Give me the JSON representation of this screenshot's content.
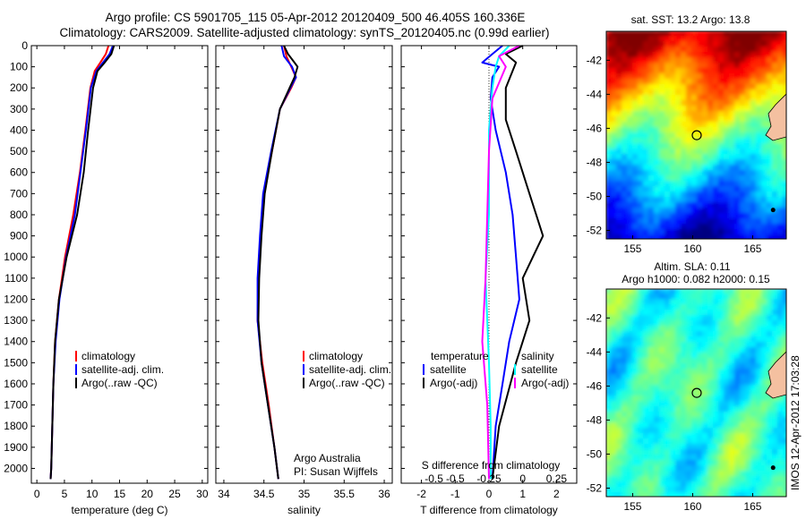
{
  "title_line1": "Argo profile: CS 5901705_115 05-Apr-2012 20120409_500 46.405S 160.336E",
  "title_line2": "Climatology: CARS2009. Satellite-adjusted climatology: synTS_20120405.nc (0.99d earlier)",
  "watermark": "IMOS 12-Apr-2012 17:03:28",
  "colors": {
    "climatology": "#ff0000",
    "satellite": "#0000ff",
    "argo": "#000000",
    "salinity_sat": "#00ffff",
    "salinity_argo": "#ff00ff"
  },
  "chart_data": [
    {
      "type": "line",
      "xlabel": "temperature (deg C)",
      "ylabel": "",
      "xlim": [
        -1,
        31
      ],
      "ylim": [
        2070,
        0
      ],
      "xticks": [
        0,
        5,
        10,
        15,
        20,
        25,
        30
      ],
      "yticks": [
        0,
        100,
        200,
        300,
        400,
        500,
        600,
        700,
        800,
        900,
        1000,
        1100,
        1200,
        1300,
        1400,
        1500,
        1600,
        1700,
        1800,
        1900,
        2000
      ],
      "legend": [
        "climatology",
        "satellite-adj. clim.",
        "Argo(..raw -QC)"
      ],
      "series": [
        {
          "name": "climatology",
          "color": "#ff0000",
          "points": [
            [
              13.0,
              0
            ],
            [
              12.5,
              40
            ],
            [
              11.5,
              80
            ],
            [
              10.5,
              120
            ],
            [
              9.7,
              200
            ],
            [
              8.8,
              400
            ],
            [
              7.8,
              600
            ],
            [
              6.6,
              800
            ],
            [
              5.1,
              1000
            ],
            [
              4.0,
              1200
            ],
            [
              3.3,
              1400
            ],
            [
              3.0,
              1600
            ],
            [
              2.8,
              1800
            ],
            [
              2.6,
              2000
            ],
            [
              2.5,
              2050
            ]
          ]
        },
        {
          "name": "satellite-adj. clim.",
          "color": "#0000ff",
          "points": [
            [
              13.8,
              0
            ],
            [
              13.2,
              40
            ],
            [
              12.0,
              80
            ],
            [
              10.8,
              120
            ],
            [
              9.8,
              200
            ],
            [
              8.9,
              400
            ],
            [
              7.9,
              600
            ],
            [
              6.9,
              800
            ],
            [
              5.3,
              1000
            ],
            [
              4.1,
              1200
            ],
            [
              3.4,
              1400
            ],
            [
              3.0,
              1600
            ],
            [
              2.8,
              1800
            ],
            [
              2.6,
              2000
            ],
            [
              2.5,
              2050
            ]
          ]
        },
        {
          "name": "Argo(..raw -QC)",
          "color": "#000000",
          "points": [
            [
              14.0,
              0
            ],
            [
              13.5,
              40
            ],
            [
              12.3,
              80
            ],
            [
              11.0,
              120
            ],
            [
              10.2,
              200
            ],
            [
              9.3,
              400
            ],
            [
              8.5,
              600
            ],
            [
              7.3,
              800
            ],
            [
              5.4,
              1000
            ],
            [
              4.0,
              1200
            ],
            [
              3.3,
              1400
            ],
            [
              3.0,
              1600
            ],
            [
              2.8,
              1800
            ],
            [
              2.6,
              2000
            ],
            [
              2.5,
              2050
            ]
          ]
        }
      ]
    },
    {
      "type": "line",
      "xlabel": "salinity",
      "ylabel": "",
      "xlim": [
        33.9,
        36.1
      ],
      "ylim": [
        2070,
        0
      ],
      "xticks": [
        34,
        34.5,
        35,
        35.5,
        36
      ],
      "yticks": [
        0,
        100,
        200,
        300,
        400,
        500,
        600,
        700,
        800,
        900,
        1000,
        1100,
        1200,
        1300,
        1400,
        1500,
        1600,
        1700,
        1800,
        1900,
        2000
      ],
      "legend": [
        "climatology",
        "satellite-adj. clim.",
        "Argo(..raw -QC)"
      ],
      "annotation": [
        "Argo Australia",
        "PI: Susan Wijffels"
      ],
      "series": [
        {
          "name": "climatology",
          "color": "#ff0000",
          "points": [
            [
              34.75,
              0
            ],
            [
              34.78,
              50
            ],
            [
              34.84,
              100
            ],
            [
              34.9,
              150
            ],
            [
              34.84,
              200
            ],
            [
              34.7,
              300
            ],
            [
              34.6,
              500
            ],
            [
              34.5,
              700
            ],
            [
              34.46,
              900
            ],
            [
              34.43,
              1100
            ],
            [
              34.42,
              1300
            ],
            [
              34.48,
              1500
            ],
            [
              34.56,
              1700
            ],
            [
              34.63,
              1900
            ],
            [
              34.68,
              2050
            ]
          ]
        },
        {
          "name": "satellite-adj. clim.",
          "color": "#0000ff",
          "points": [
            [
              34.72,
              0
            ],
            [
              34.75,
              50
            ],
            [
              34.85,
              100
            ],
            [
              34.9,
              150
            ],
            [
              34.83,
              200
            ],
            [
              34.7,
              300
            ],
            [
              34.59,
              500
            ],
            [
              34.49,
              700
            ],
            [
              34.45,
              900
            ],
            [
              34.42,
              1100
            ],
            [
              34.42,
              1300
            ],
            [
              34.47,
              1500
            ],
            [
              34.55,
              1700
            ],
            [
              34.63,
              1900
            ],
            [
              34.68,
              2050
            ]
          ]
        },
        {
          "name": "Argo(..raw -QC)",
          "color": "#000000",
          "points": [
            [
              34.75,
              0
            ],
            [
              34.8,
              40
            ],
            [
              34.88,
              80
            ],
            [
              34.92,
              100
            ],
            [
              34.88,
              150
            ],
            [
              34.82,
              200
            ],
            [
              34.7,
              300
            ],
            [
              34.6,
              500
            ],
            [
              34.51,
              700
            ],
            [
              34.47,
              900
            ],
            [
              34.44,
              1100
            ],
            [
              34.43,
              1300
            ],
            [
              34.47,
              1500
            ],
            [
              34.55,
              1700
            ],
            [
              34.63,
              1900
            ],
            [
              34.68,
              2050
            ]
          ]
        }
      ]
    },
    {
      "type": "line",
      "xlabel": "T difference from climatology",
      "top_label": "S difference from climatology",
      "xlim": [
        -2.6,
        2.6
      ],
      "ylim": [
        2070,
        0
      ],
      "xticks": [
        -2,
        -1,
        0,
        1,
        2
      ],
      "xtick_labels_top": [
        "-0.5",
        "-0.25",
        "0",
        "0.25",
        "0.5"
      ],
      "yticks": [
        0,
        100,
        200,
        300,
        400,
        500,
        600,
        700,
        800,
        900,
        1000,
        1100,
        1200,
        1300,
        1400,
        1500,
        1600,
        1700,
        1800,
        1900,
        2000
      ],
      "legend_left_title": "temperature",
      "legend_left": [
        "satellite",
        "Argo(-adj)"
      ],
      "legend_right_title": "salinity",
      "legend_right": [
        "satellite",
        "Argo(-adj)"
      ],
      "series": [
        {
          "name": "satellite",
          "color": "#0000ff",
          "points": [
            [
              0.4,
              0
            ],
            [
              0.1,
              40
            ],
            [
              -0.2,
              80
            ],
            [
              0.3,
              100
            ],
            [
              0.1,
              150
            ],
            [
              0.05,
              250
            ],
            [
              0.2,
              400
            ],
            [
              0.5,
              600
            ],
            [
              0.7,
              800
            ],
            [
              0.8,
              1000
            ],
            [
              0.9,
              1200
            ],
            [
              0.6,
              1400
            ],
            [
              0.4,
              1600
            ],
            [
              0.2,
              1800
            ],
            [
              0.1,
              2050
            ]
          ]
        },
        {
          "name": "Argo(-adj)",
          "color": "#000000",
          "points": [
            [
              1.0,
              0
            ],
            [
              0.5,
              40
            ],
            [
              0.8,
              80
            ],
            [
              0.7,
              120
            ],
            [
              0.5,
              200
            ],
            [
              0.5,
              350
            ],
            [
              0.8,
              500
            ],
            [
              1.2,
              700
            ],
            [
              1.6,
              900
            ],
            [
              1.3,
              1000
            ],
            [
              1.0,
              1100
            ],
            [
              1.2,
              1300
            ],
            [
              0.8,
              1500
            ],
            [
              0.3,
              1800
            ],
            [
              0.1,
              2050
            ]
          ]
        },
        {
          "name": "satellite",
          "color": "#00ffff",
          "points": [
            [
              0.6,
              0
            ],
            [
              0.3,
              50
            ],
            [
              0.2,
              100
            ],
            [
              0.1,
              200
            ],
            [
              0.0,
              400
            ],
            [
              0.0,
              800
            ],
            [
              -0.1,
              1100
            ],
            [
              0.0,
              1500
            ],
            [
              0.05,
              1800
            ],
            [
              0.05,
              2050
            ]
          ]
        },
        {
          "name": "Argo(-adj)",
          "color": "#ff00ff",
          "points": [
            [
              0.9,
              0
            ],
            [
              0.3,
              50
            ],
            [
              0.5,
              100
            ],
            [
              0.1,
              250
            ],
            [
              0.0,
              500
            ],
            [
              -0.05,
              800
            ],
            [
              -0.1,
              1100
            ],
            [
              -0.2,
              1400
            ],
            [
              -0.05,
              1700
            ],
            [
              0.0,
              2050
            ]
          ]
        }
      ]
    }
  ],
  "maps": [
    {
      "title_lines": [
        "sat. SST: 13.2 Argo: 13.8"
      ],
      "xticks": [
        155,
        160,
        165
      ],
      "yticks": [
        -42,
        -44,
        -46,
        -48,
        -50,
        -52
      ],
      "xlim": [
        152.8,
        167.8
      ],
      "ylim": [
        -52.5,
        -40.3
      ],
      "argo_position": [
        160.336,
        -46.405
      ],
      "colormap": "jet",
      "shown": "SST field, warm (red) north, cold (blue) south"
    },
    {
      "title_lines": [
        "Altim. SLA: 0.11",
        "Argo h1000: 0.082 h2000: 0.15"
      ],
      "xticks": [
        155,
        160,
        165
      ],
      "yticks": [
        -42,
        -44,
        -46,
        -48,
        -50,
        -52
      ],
      "xlim": [
        152.8,
        167.8
      ],
      "ylim": [
        -52.5,
        -40.3
      ],
      "argo_position": [
        160.336,
        -46.405
      ],
      "colormap": "jet",
      "shown": "sea level anomaly field, mostly green/yellow"
    }
  ]
}
